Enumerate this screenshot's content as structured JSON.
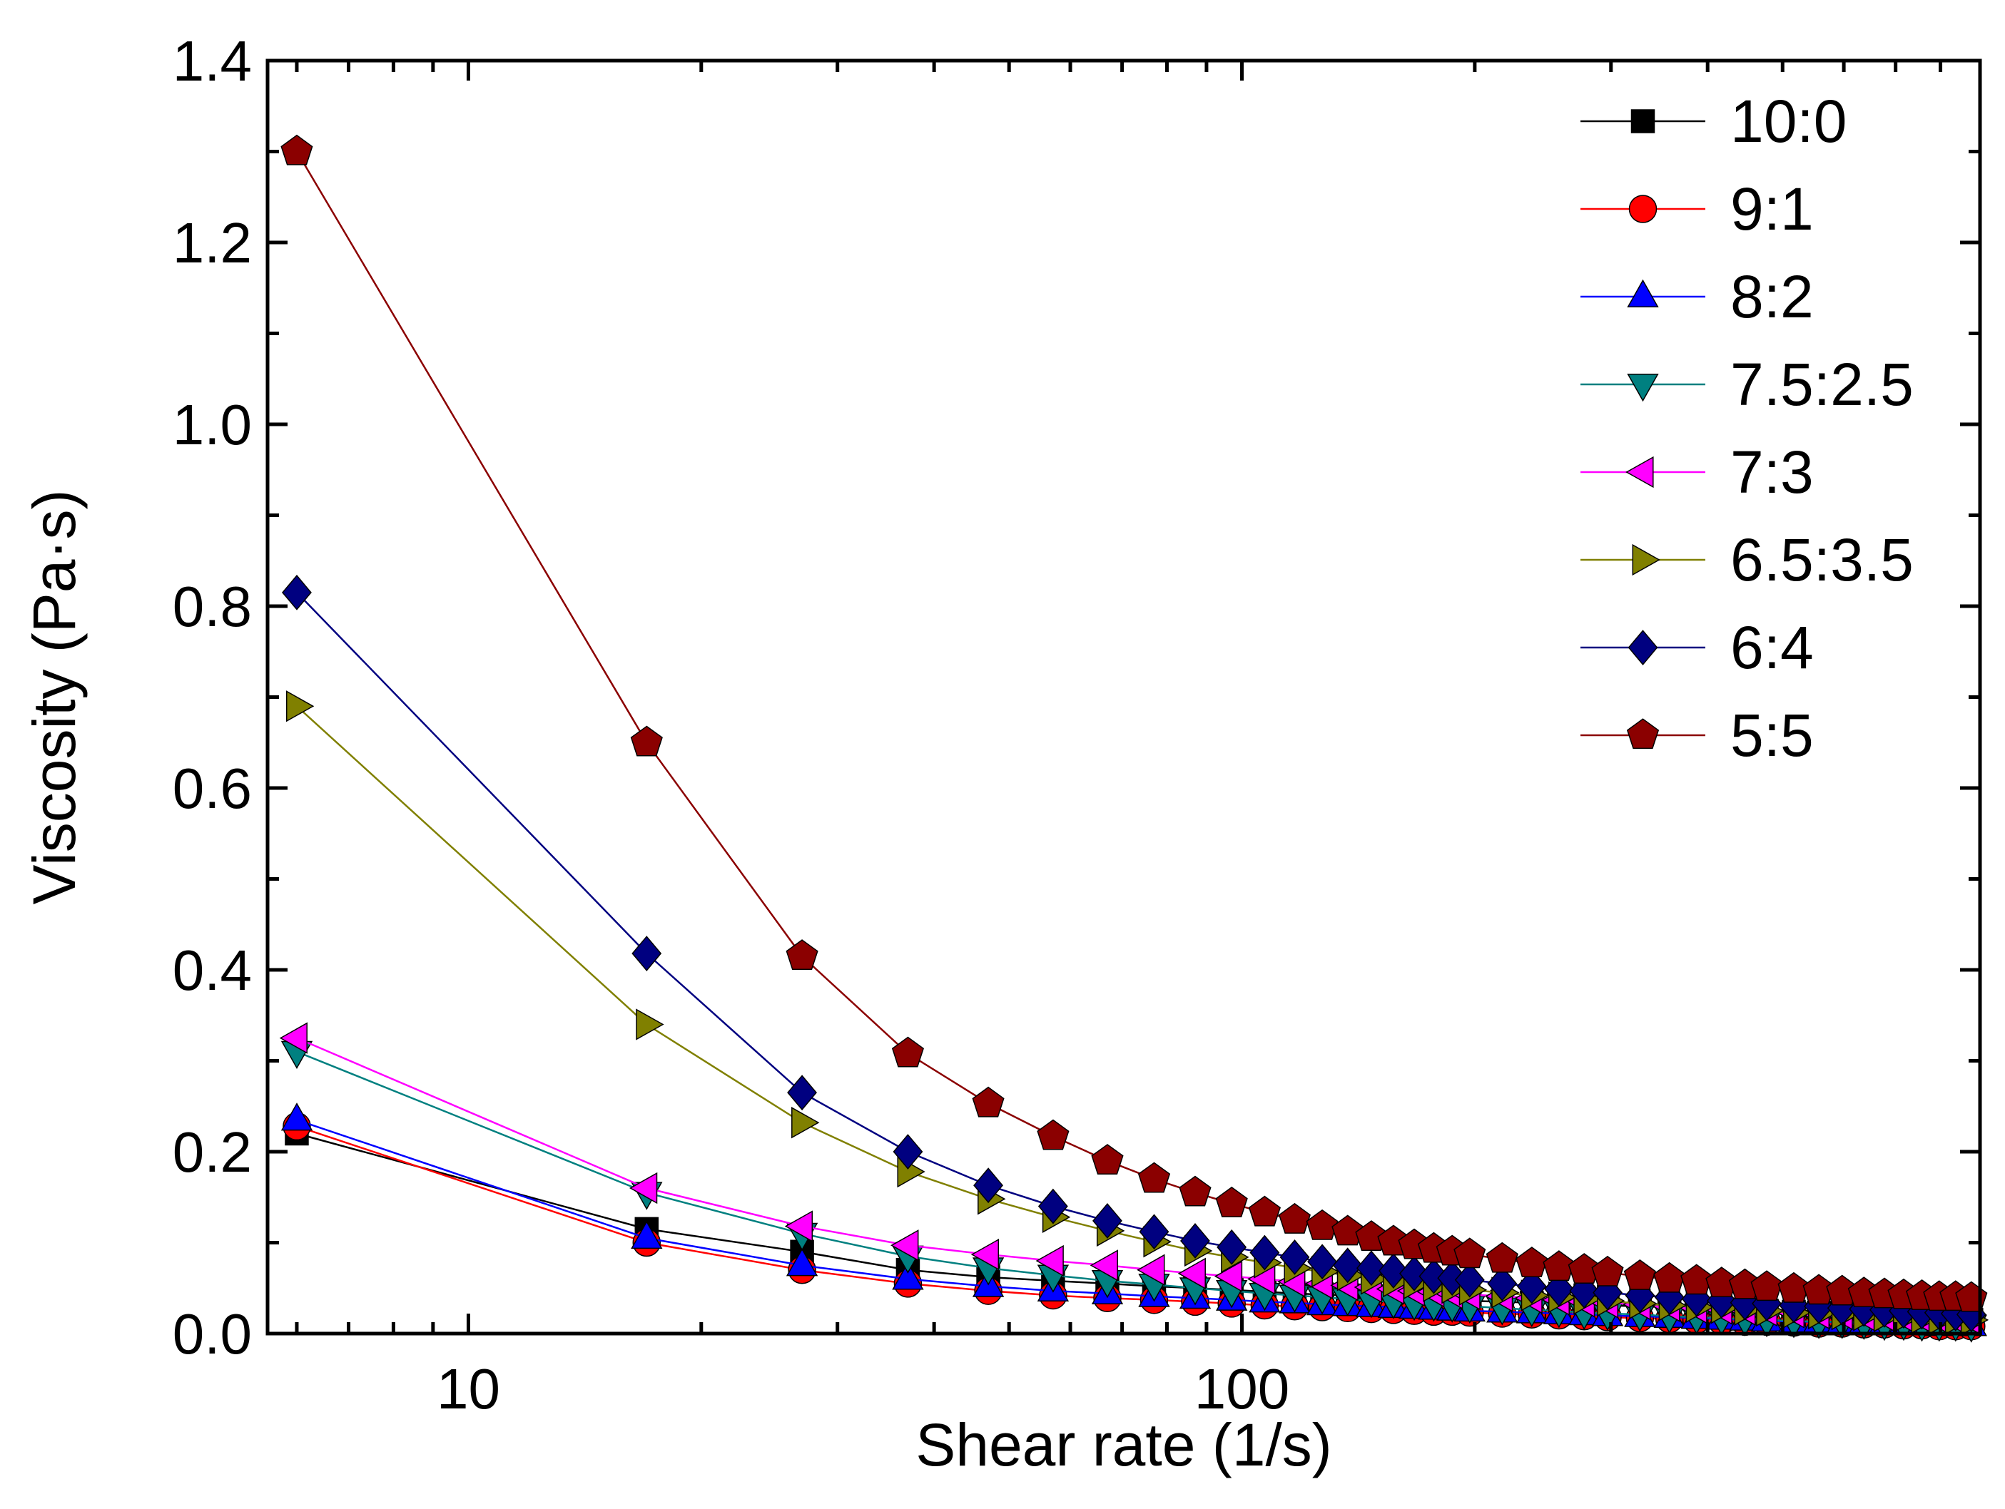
{
  "chart_data": {
    "type": "line",
    "xlabel": "Shear rate (1/s)",
    "ylabel": "Viscosity (Pa·s)",
    "x_scale": "log",
    "xlim": [
      5.5,
      900
    ],
    "ylim": [
      0,
      1.4
    ],
    "x_tick_labels": [
      "10",
      "100"
    ],
    "y_tick_labels": [
      "0.0",
      "0.2",
      "0.4",
      "0.6",
      "0.8",
      "1.0",
      "1.2",
      "1.4"
    ],
    "legend_position": "top-right",
    "grid": false,
    "x": [
      6,
      17,
      27,
      37,
      47,
      57,
      67,
      77,
      87,
      97,
      107,
      117,
      127,
      137,
      147,
      157,
      167,
      177,
      187,
      197,
      217,
      237,
      257,
      277,
      297,
      327,
      357,
      387,
      417,
      447,
      477,
      517,
      557,
      597,
      637,
      677,
      717,
      757,
      797,
      837,
      877
    ],
    "series": [
      {
        "name": "10:0",
        "color": "#000000",
        "marker": "square",
        "values": [
          0.22,
          0.115,
          0.09,
          0.07,
          0.062,
          0.058,
          0.055,
          0.052,
          0.05,
          0.048,
          0.046,
          0.044,
          0.043,
          0.042,
          0.041,
          0.04,
          0.039,
          0.038,
          0.037,
          0.036,
          0.035,
          0.034,
          0.033,
          0.032,
          0.031,
          0.03,
          0.029,
          0.028,
          0.027,
          0.026,
          0.025,
          0.024,
          0.023,
          0.022,
          0.021,
          0.02,
          0.019,
          0.018,
          0.017,
          0.016,
          0.015
        ]
      },
      {
        "name": "9:1",
        "color": "#ff0000",
        "marker": "circle",
        "values": [
          0.228,
          0.1,
          0.07,
          0.055,
          0.047,
          0.042,
          0.039,
          0.037,
          0.035,
          0.033,
          0.031,
          0.03,
          0.029,
          0.028,
          0.027,
          0.026,
          0.025,
          0.024,
          0.024,
          0.023,
          0.022,
          0.021,
          0.02,
          0.019,
          0.018,
          0.017,
          0.016,
          0.015,
          0.014,
          0.013,
          0.013,
          0.012,
          0.011,
          0.011,
          0.01,
          0.01,
          0.009,
          0.009,
          0.008,
          0.008,
          0.008
        ]
      },
      {
        "name": "8:2",
        "color": "#0000ff",
        "marker": "triangle-up",
        "values": [
          0.235,
          0.105,
          0.075,
          0.06,
          0.052,
          0.047,
          0.044,
          0.041,
          0.039,
          0.037,
          0.035,
          0.034,
          0.032,
          0.031,
          0.03,
          0.029,
          0.028,
          0.027,
          0.026,
          0.025,
          0.024,
          0.023,
          0.022,
          0.021,
          0.02,
          0.019,
          0.018,
          0.017,
          0.016,
          0.015,
          0.014,
          0.013,
          0.013,
          0.012,
          0.011,
          0.011,
          0.01,
          0.01,
          0.009,
          0.009,
          0.009
        ]
      },
      {
        "name": "7.5:2.5",
        "color": "#008080",
        "marker": "triangle-down",
        "values": [
          0.31,
          0.155,
          0.11,
          0.085,
          0.072,
          0.064,
          0.058,
          0.054,
          0.05,
          0.047,
          0.044,
          0.042,
          0.04,
          0.038,
          0.036,
          0.035,
          0.033,
          0.032,
          0.031,
          0.03,
          0.028,
          0.026,
          0.025,
          0.023,
          0.022,
          0.021,
          0.019,
          0.018,
          0.017,
          0.016,
          0.015,
          0.014,
          0.013,
          0.013,
          0.012,
          0.011,
          0.011,
          0.01,
          0.01,
          0.01,
          0.009
        ]
      },
      {
        "name": "7:3",
        "color": "#ff00ff",
        "marker": "triangle-left",
        "values": [
          0.325,
          0.16,
          0.118,
          0.097,
          0.087,
          0.08,
          0.075,
          0.07,
          0.066,
          0.063,
          0.06,
          0.057,
          0.055,
          0.053,
          0.051,
          0.049,
          0.047,
          0.046,
          0.044,
          0.043,
          0.041,
          0.039,
          0.037,
          0.035,
          0.034,
          0.032,
          0.03,
          0.028,
          0.027,
          0.026,
          0.025,
          0.023,
          0.022,
          0.021,
          0.02,
          0.019,
          0.018,
          0.017,
          0.016,
          0.016,
          0.015
        ]
      },
      {
        "name": "6.5:3.5",
        "color": "#808000",
        "marker": "triangle-right",
        "values": [
          0.69,
          0.34,
          0.232,
          0.178,
          0.148,
          0.128,
          0.113,
          0.101,
          0.091,
          0.084,
          0.078,
          0.072,
          0.068,
          0.064,
          0.06,
          0.057,
          0.055,
          0.052,
          0.05,
          0.048,
          0.045,
          0.042,
          0.04,
          0.038,
          0.036,
          0.033,
          0.031,
          0.029,
          0.028,
          0.026,
          0.025,
          0.023,
          0.022,
          0.021,
          0.02,
          0.019,
          0.018,
          0.017,
          0.016,
          0.016,
          0.015
        ]
      },
      {
        "name": "6:4",
        "color": "#000080",
        "marker": "diamond",
        "values": [
          0.815,
          0.418,
          0.265,
          0.2,
          0.163,
          0.14,
          0.124,
          0.112,
          0.102,
          0.095,
          0.089,
          0.084,
          0.079,
          0.075,
          0.072,
          0.069,
          0.066,
          0.063,
          0.061,
          0.059,
          0.055,
          0.052,
          0.049,
          0.047,
          0.045,
          0.042,
          0.04,
          0.038,
          0.036,
          0.034,
          0.033,
          0.031,
          0.03,
          0.028,
          0.027,
          0.026,
          0.025,
          0.024,
          0.023,
          0.022,
          0.021
        ]
      },
      {
        "name": "5:5",
        "color": "#8b0000",
        "marker": "pentagon",
        "values": [
          1.3,
          0.65,
          0.415,
          0.308,
          0.253,
          0.217,
          0.19,
          0.17,
          0.155,
          0.143,
          0.133,
          0.125,
          0.118,
          0.112,
          0.106,
          0.101,
          0.097,
          0.093,
          0.09,
          0.087,
          0.082,
          0.077,
          0.073,
          0.07,
          0.067,
          0.063,
          0.06,
          0.058,
          0.055,
          0.053,
          0.051,
          0.049,
          0.047,
          0.046,
          0.044,
          0.043,
          0.042,
          0.041,
          0.04,
          0.04,
          0.039
        ]
      }
    ]
  }
}
